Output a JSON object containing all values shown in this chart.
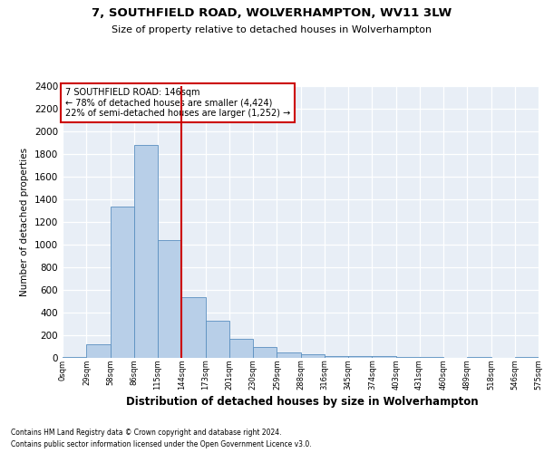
{
  "title1": "7, SOUTHFIELD ROAD, WOLVERHAMPTON, WV11 3LW",
  "title2": "Size of property relative to detached houses in Wolverhampton",
  "xlabel": "Distribution of detached houses by size in Wolverhampton",
  "ylabel": "Number of detached properties",
  "footnote1": "Contains HM Land Registry data © Crown copyright and database right 2024.",
  "footnote2": "Contains public sector information licensed under the Open Government Licence v3.0.",
  "bar_color": "#b8cfe8",
  "bar_edge_color": "#5a8fc0",
  "background_color": "#e8eef6",
  "grid_color": "#ffffff",
  "vline_x": 144,
  "vline_color": "#cc0000",
  "annotation_text": "7 SOUTHFIELD ROAD: 146sqm\n← 78% of detached houses are smaller (4,424)\n22% of semi-detached houses are larger (1,252) →",
  "bin_edges": [
    0,
    29,
    58,
    86,
    115,
    144,
    173,
    201,
    230,
    259,
    288,
    316,
    345,
    374,
    403,
    431,
    460,
    489,
    518,
    546,
    575
  ],
  "bin_counts": [
    10,
    120,
    1340,
    1880,
    1040,
    540,
    330,
    165,
    100,
    50,
    30,
    20,
    20,
    15,
    5,
    5,
    0,
    10,
    0,
    10
  ],
  "ylim": [
    0,
    2400
  ],
  "yticks": [
    0,
    200,
    400,
    600,
    800,
    1000,
    1200,
    1400,
    1600,
    1800,
    2000,
    2200,
    2400
  ],
  "box_color": "#cc0000",
  "annotation_box_facecolor": "white",
  "title1_fontsize": 9.5,
  "title2_fontsize": 8,
  "ylabel_fontsize": 7.5,
  "xlabel_fontsize": 8.5,
  "ytick_fontsize": 7.5,
  "xtick_fontsize": 6,
  "annot_fontsize": 7,
  "footnote_fontsize": 5.5
}
